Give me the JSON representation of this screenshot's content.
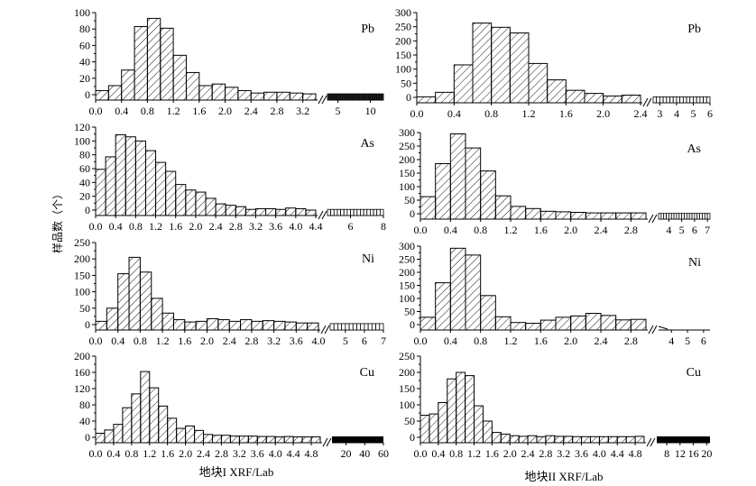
{
  "figure": {
    "ylabel": "样品数（个）",
    "xlabels": [
      "地块I  XRF/Lab",
      "地块II  XRF/Lab"
    ]
  },
  "chart_data": [
    {
      "type": "bar",
      "plot": "地块I",
      "element": "Pb",
      "ylim": [
        0,
        100
      ],
      "yticks": [
        0,
        20,
        40,
        60,
        80,
        100
      ],
      "bin_width": 0.2,
      "main_range": [
        0.0,
        3.4
      ],
      "main_values": [
        5,
        11,
        30,
        83,
        93,
        81,
        48,
        27,
        11,
        13,
        9,
        5,
        2,
        3,
        3,
        2,
        1
      ],
      "main_tick_labels": [
        "0.0",
        "0.4",
        "0.8",
        "1.2",
        "1.6",
        "2.0",
        "2.4",
        "2.8",
        "3.2"
      ],
      "tail_range": [
        3.4,
        12
      ],
      "tail_tick_labels": [
        "5",
        "10"
      ],
      "tail_tick_values": [
        5,
        10
      ],
      "tail_count": 26,
      "tail_values_approx": 1,
      "tail_style": "dense"
    },
    {
      "type": "bar",
      "plot": "地块II",
      "element": "Pb",
      "ylim": [
        0,
        300
      ],
      "yticks": [
        0,
        50,
        100,
        150,
        200,
        250,
        300
      ],
      "bin_width": 0.2,
      "main_range": [
        0.0,
        2.4
      ],
      "main_values": [
        2,
        18,
        115,
        263,
        248,
        228,
        120,
        62,
        25,
        14,
        5,
        8
      ],
      "main_tick_labels": [
        "0.0",
        "0.4",
        "0.8",
        "1.2",
        "1.6",
        "2.0",
        "2.4"
      ],
      "tail_range": [
        2.6,
        6
      ],
      "tail_tick_labels": [
        "3",
        "4",
        "5",
        "6"
      ],
      "tail_tick_values": [
        3,
        4,
        5,
        6
      ],
      "tail_count": 17,
      "tail_values_approx": 2,
      "tail_style": "sparse"
    },
    {
      "type": "bar",
      "plot": "地块I",
      "element": "As",
      "ylim": [
        0,
        120
      ],
      "yticks": [
        0,
        20,
        40,
        60,
        80,
        100,
        120
      ],
      "bin_width": 0.2,
      "main_range": [
        0.0,
        4.4
      ],
      "main_values": [
        59,
        77,
        109,
        106,
        100,
        86,
        69,
        56,
        37,
        29,
        26,
        17,
        9,
        7,
        5,
        1,
        2,
        2,
        1,
        3,
        2,
        0
      ],
      "main_tick_labels": [
        "0.0",
        "0.4",
        "0.8",
        "1.2",
        "1.6",
        "2.0",
        "2.4",
        "2.8",
        "3.2",
        "3.6",
        "4.0",
        "4.4"
      ],
      "tail_range": [
        4.6,
        8
      ],
      "tail_tick_labels": [
        "6",
        "8"
      ],
      "tail_tick_values": [
        6,
        8
      ],
      "tail_count": 17,
      "tail_values_approx": 1,
      "tail_style": "sparse"
    },
    {
      "type": "bar",
      "plot": "地块II",
      "element": "As",
      "ylim": [
        0,
        300
      ],
      "yticks": [
        0,
        50,
        100,
        150,
        200,
        250,
        300
      ],
      "bin_width": 0.2,
      "main_range": [
        0.0,
        3.0
      ],
      "main_values": [
        63,
        185,
        295,
        243,
        158,
        66,
        27,
        19,
        9,
        7,
        5,
        3,
        3,
        3,
        3
      ],
      "main_tick_labels": [
        "0.0",
        "0.4",
        "0.8",
        "1.2",
        "1.6",
        "2.0",
        "2.4",
        "2.8"
      ],
      "tail_range": [
        3.2,
        7.2
      ],
      "tail_tick_labels": [
        "4",
        "5",
        "6",
        "7"
      ],
      "tail_tick_values": [
        4,
        5,
        6,
        7
      ],
      "tail_count": 20,
      "tail_values_approx": 1,
      "tail_style": "sparse"
    },
    {
      "type": "bar",
      "plot": "地块I",
      "element": "Ni",
      "ylim": [
        0,
        250
      ],
      "yticks": [
        0,
        50,
        100,
        150,
        200,
        250
      ],
      "bin_width": 0.2,
      "main_range": [
        0.0,
        4.0
      ],
      "main_values": [
        10,
        50,
        155,
        205,
        160,
        80,
        35,
        15,
        8,
        10,
        18,
        15,
        10,
        15,
        10,
        12,
        10,
        8,
        5,
        5
      ],
      "main_tick_labels": [
        "0.0",
        "0.4",
        "0.8",
        "1.2",
        "1.6",
        "2.0",
        "2.4",
        "2.8",
        "3.2",
        "3.6",
        "4.0"
      ],
      "tail_range": [
        4.2,
        7
      ],
      "tail_tick_labels": [
        "5",
        "6",
        "7"
      ],
      "tail_tick_values": [
        5,
        6,
        7
      ],
      "tail_count": 14,
      "tail_values_approx": 3,
      "tail_style": "sparse"
    },
    {
      "type": "bar",
      "plot": "地块II",
      "element": "Ni",
      "ylim": [
        0,
        300
      ],
      "yticks": [
        0,
        50,
        100,
        150,
        200,
        250,
        300
      ],
      "bin_width": 0.2,
      "main_range": [
        0.0,
        3.0
      ],
      "main_values": [
        28,
        160,
        292,
        266,
        111,
        30,
        8,
        5,
        17,
        28,
        33,
        43,
        35,
        18,
        20
      ],
      "main_tick_labels": [
        "0.0",
        "0.4",
        "0.8",
        "1.2",
        "1.6",
        "2.0",
        "2.4",
        "2.8"
      ],
      "tail_range": [
        3.2,
        6.4
      ],
      "tail_tick_labels": [
        "4",
        "5",
        "6"
      ],
      "tail_tick_values": [
        4,
        5,
        6
      ],
      "tail_count": 16,
      "tail_values_approx": 0,
      "tail_style": "empty"
    },
    {
      "type": "bar",
      "plot": "地块I",
      "element": "Cu",
      "ylim": [
        0,
        200
      ],
      "yticks": [
        0,
        40,
        80,
        120,
        160,
        200
      ],
      "bin_width": 0.2,
      "main_range": [
        0.0,
        5.0
      ],
      "main_values": [
        10,
        18,
        32,
        73,
        107,
        162,
        122,
        77,
        47,
        22,
        28,
        17,
        7,
        5,
        5,
        3,
        3,
        3,
        2,
        2,
        1,
        2,
        1,
        1,
        1
      ],
      "main_tick_labels": [
        "0.0",
        "0.4",
        "0.8",
        "1.2",
        "1.6",
        "2.0",
        "2.4",
        "2.8",
        "3.2",
        "3.6",
        "4.0",
        "4.4",
        "4.8"
      ],
      "tail_range": [
        5.0,
        60
      ],
      "tail_tick_labels": [
        "20",
        "40",
        "60"
      ],
      "tail_tick_values": [
        20,
        40,
        60
      ],
      "tail_count": 60,
      "tail_values_approx": 1,
      "tail_style": "solid"
    },
    {
      "type": "bar",
      "plot": "地块II",
      "element": "Cu",
      "ylim": [
        0,
        250
      ],
      "yticks": [
        0,
        50,
        100,
        150,
        200,
        250
      ],
      "bin_width": 0.2,
      "main_range": [
        0.0,
        5.0
      ],
      "main_values": [
        68,
        72,
        107,
        180,
        200,
        190,
        97,
        50,
        15,
        10,
        5,
        3,
        5,
        2,
        5,
        3,
        3,
        2,
        2,
        2,
        2,
        2,
        2,
        2,
        3
      ],
      "main_tick_labels": [
        "0.0",
        "0.4",
        "0.8",
        "1.2",
        "1.6",
        "2.0",
        "2.4",
        "2.8",
        "3.2",
        "3.6",
        "4.0",
        "4.4",
        "4.8"
      ],
      "tail_range": [
        5.0,
        21
      ],
      "tail_tick_labels": [
        "8",
        "12",
        "16",
        "20"
      ],
      "tail_tick_values": [
        8,
        12,
        16,
        20
      ],
      "tail_count": 40,
      "tail_values_approx": 1,
      "tail_style": "solid"
    }
  ]
}
